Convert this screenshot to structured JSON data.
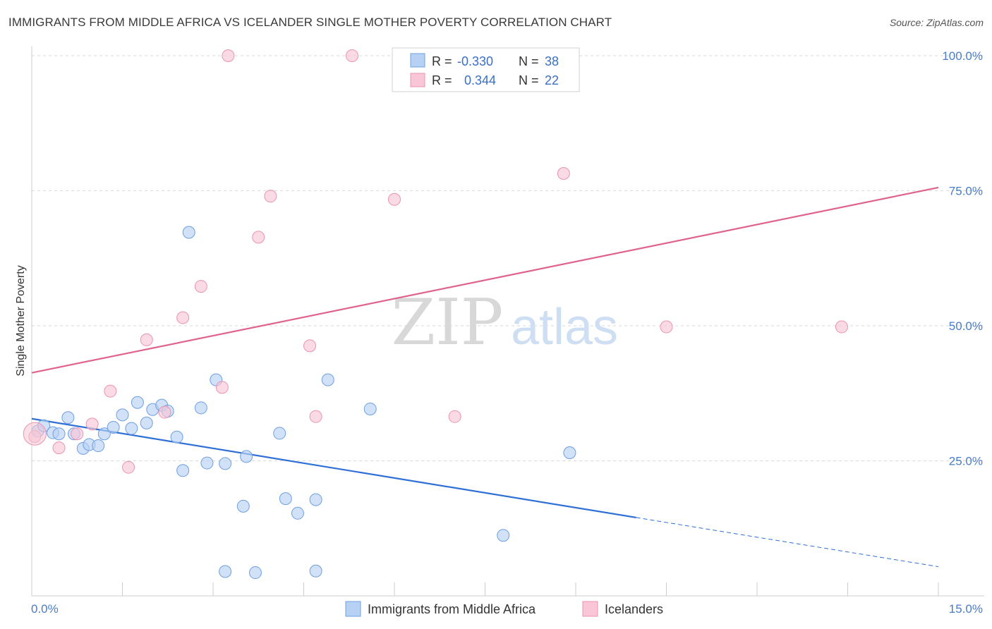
{
  "title": "IMMIGRANTS FROM MIDDLE AFRICA VS ICELANDER SINGLE MOTHER POVERTY CORRELATION CHART",
  "source": "Source: ZipAtlas.com",
  "watermark": {
    "part1": "ZIP",
    "part2": "atlas"
  },
  "colors": {
    "blue": "#2f6fd6",
    "blue_fill": "#b7d1f5",
    "blue_stroke": "#6f9fe0",
    "pink": "#e0638c",
    "pink_fill": "#f8c6d6",
    "pink_stroke": "#eb93b0",
    "tick": "#4a7cc7",
    "grid": "#d9d9d9"
  },
  "legend": {
    "rows": [
      {
        "r_label": "R =",
        "r_value": "-0.330",
        "n_label": "N =",
        "n_value": "38",
        "series": "blue"
      },
      {
        "r_label": "R =",
        "r_value": "0.344",
        "n_label": "N =",
        "n_value": "22",
        "series": "pink"
      }
    ]
  },
  "bottom_legend": [
    "Immigrants from Middle Africa",
    "Icelanders"
  ],
  "chart_data": {
    "type": "scatter",
    "title": "IMMIGRANTS FROM MIDDLE AFRICA VS ICELANDER SINGLE MOTHER POVERTY CORRELATION CHART",
    "xlabel": "",
    "ylabel": "Single Mother Poverty",
    "xlim": [
      0,
      15
    ],
    "ylim": [
      0,
      100
    ],
    "x_tick_labels": [
      "0.0%",
      "15.0%"
    ],
    "y_ticks": [
      25,
      50,
      75,
      100
    ],
    "y_tick_labels": [
      "25.0%",
      "50.0%",
      "75.0%",
      "100.0%"
    ],
    "grid": true,
    "series": [
      {
        "name": "Immigrants from Middle Africa",
        "color": "blue",
        "points": [
          [
            0.1,
            30.5
          ],
          [
            0.2,
            31.5
          ],
          [
            0.35,
            30.2
          ],
          [
            0.45,
            30.0
          ],
          [
            0.6,
            33.0
          ],
          [
            0.7,
            30.0
          ],
          [
            0.85,
            27.3
          ],
          [
            0.95,
            28.0
          ],
          [
            1.1,
            27.8
          ],
          [
            1.2,
            30.0
          ],
          [
            1.35,
            31.2
          ],
          [
            1.5,
            33.5
          ],
          [
            1.65,
            31.0
          ],
          [
            1.75,
            35.8
          ],
          [
            1.9,
            32.0
          ],
          [
            2.0,
            34.5
          ],
          [
            2.15,
            35.3
          ],
          [
            2.25,
            34.2
          ],
          [
            2.4,
            29.4
          ],
          [
            2.5,
            23.2
          ],
          [
            2.6,
            67.3
          ],
          [
            2.8,
            34.8
          ],
          [
            2.9,
            24.6
          ],
          [
            3.05,
            40.0
          ],
          [
            3.2,
            24.5
          ],
          [
            3.5,
            16.6
          ],
          [
            3.55,
            25.8
          ],
          [
            4.1,
            30.1
          ],
          [
            4.2,
            18.0
          ],
          [
            4.4,
            15.3
          ],
          [
            4.7,
            17.8
          ],
          [
            4.9,
            40.0
          ],
          [
            5.6,
            34.6
          ],
          [
            3.2,
            4.5
          ],
          [
            3.7,
            4.3
          ],
          [
            4.7,
            4.6
          ],
          [
            7.8,
            11.2
          ],
          [
            8.9,
            26.5
          ]
        ],
        "trend": {
          "x": [
            0,
            10
          ],
          "y": [
            32.8,
            14.5
          ],
          "dashed_extension": {
            "x": [
              10,
              15
            ],
            "y": [
              14.5,
              5.4
            ]
          }
        }
      },
      {
        "name": "Icelanders",
        "color": "pink",
        "points": [
          [
            0.05,
            29.5
          ],
          [
            0.45,
            27.4
          ],
          [
            0.75,
            30.0
          ],
          [
            1.0,
            31.8
          ],
          [
            1.3,
            37.9
          ],
          [
            1.6,
            23.8
          ],
          [
            1.9,
            47.4
          ],
          [
            2.2,
            34.0
          ],
          [
            2.5,
            51.5
          ],
          [
            2.8,
            57.3
          ],
          [
            3.15,
            38.6
          ],
          [
            3.25,
            100.0
          ],
          [
            3.75,
            66.4
          ],
          [
            3.95,
            74.0
          ],
          [
            4.6,
            46.3
          ],
          [
            4.7,
            33.2
          ],
          [
            5.3,
            100.0
          ],
          [
            6.0,
            73.4
          ],
          [
            7.0,
            33.2
          ],
          [
            8.8,
            78.2
          ],
          [
            10.5,
            49.8
          ],
          [
            13.4,
            49.8
          ]
        ],
        "trend": {
          "x": [
            0,
            15
          ],
          "y": [
            41.3,
            75.6
          ]
        }
      }
    ]
  }
}
